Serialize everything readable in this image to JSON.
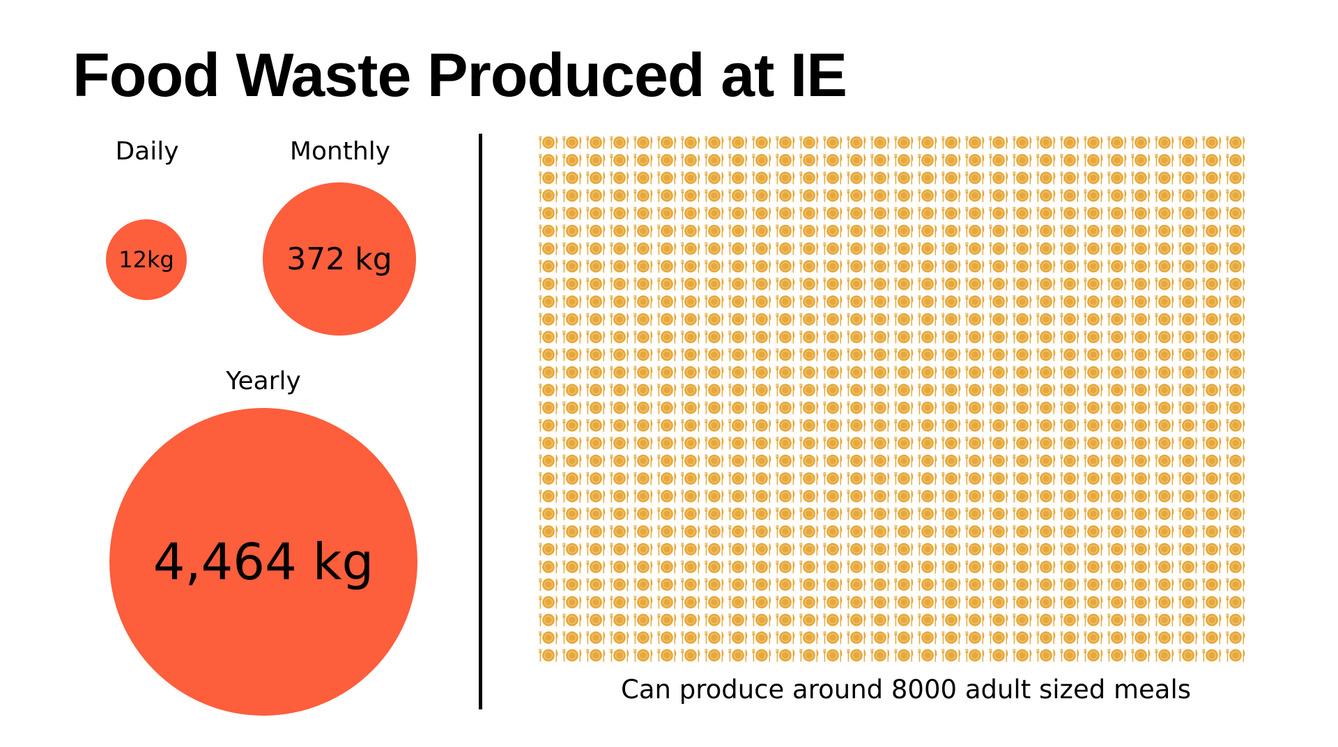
{
  "title": "Food Waste Produced at IE",
  "chart_data": {
    "type": "bubble",
    "series": [
      {
        "label": "Daily",
        "value": 12,
        "value_text": "12kg"
      },
      {
        "label": "Monthly",
        "value": 372,
        "value_text": "372 kg"
      },
      {
        "label": "Yearly",
        "value": 4464,
        "value_text": "4,464 kg"
      }
    ],
    "bubble_color": "#fd5e3c",
    "pictogram": {
      "icon": "plate-with-fork-and-knife-icon",
      "icon_color": "#e7a83a",
      "rows": 30,
      "columns": 30,
      "caption": "Can produce around 8000 adult sized meals"
    }
  },
  "colors": {
    "bubble": "#fd5e3c",
    "icon": "#e7a83a",
    "divider": "#000000"
  }
}
